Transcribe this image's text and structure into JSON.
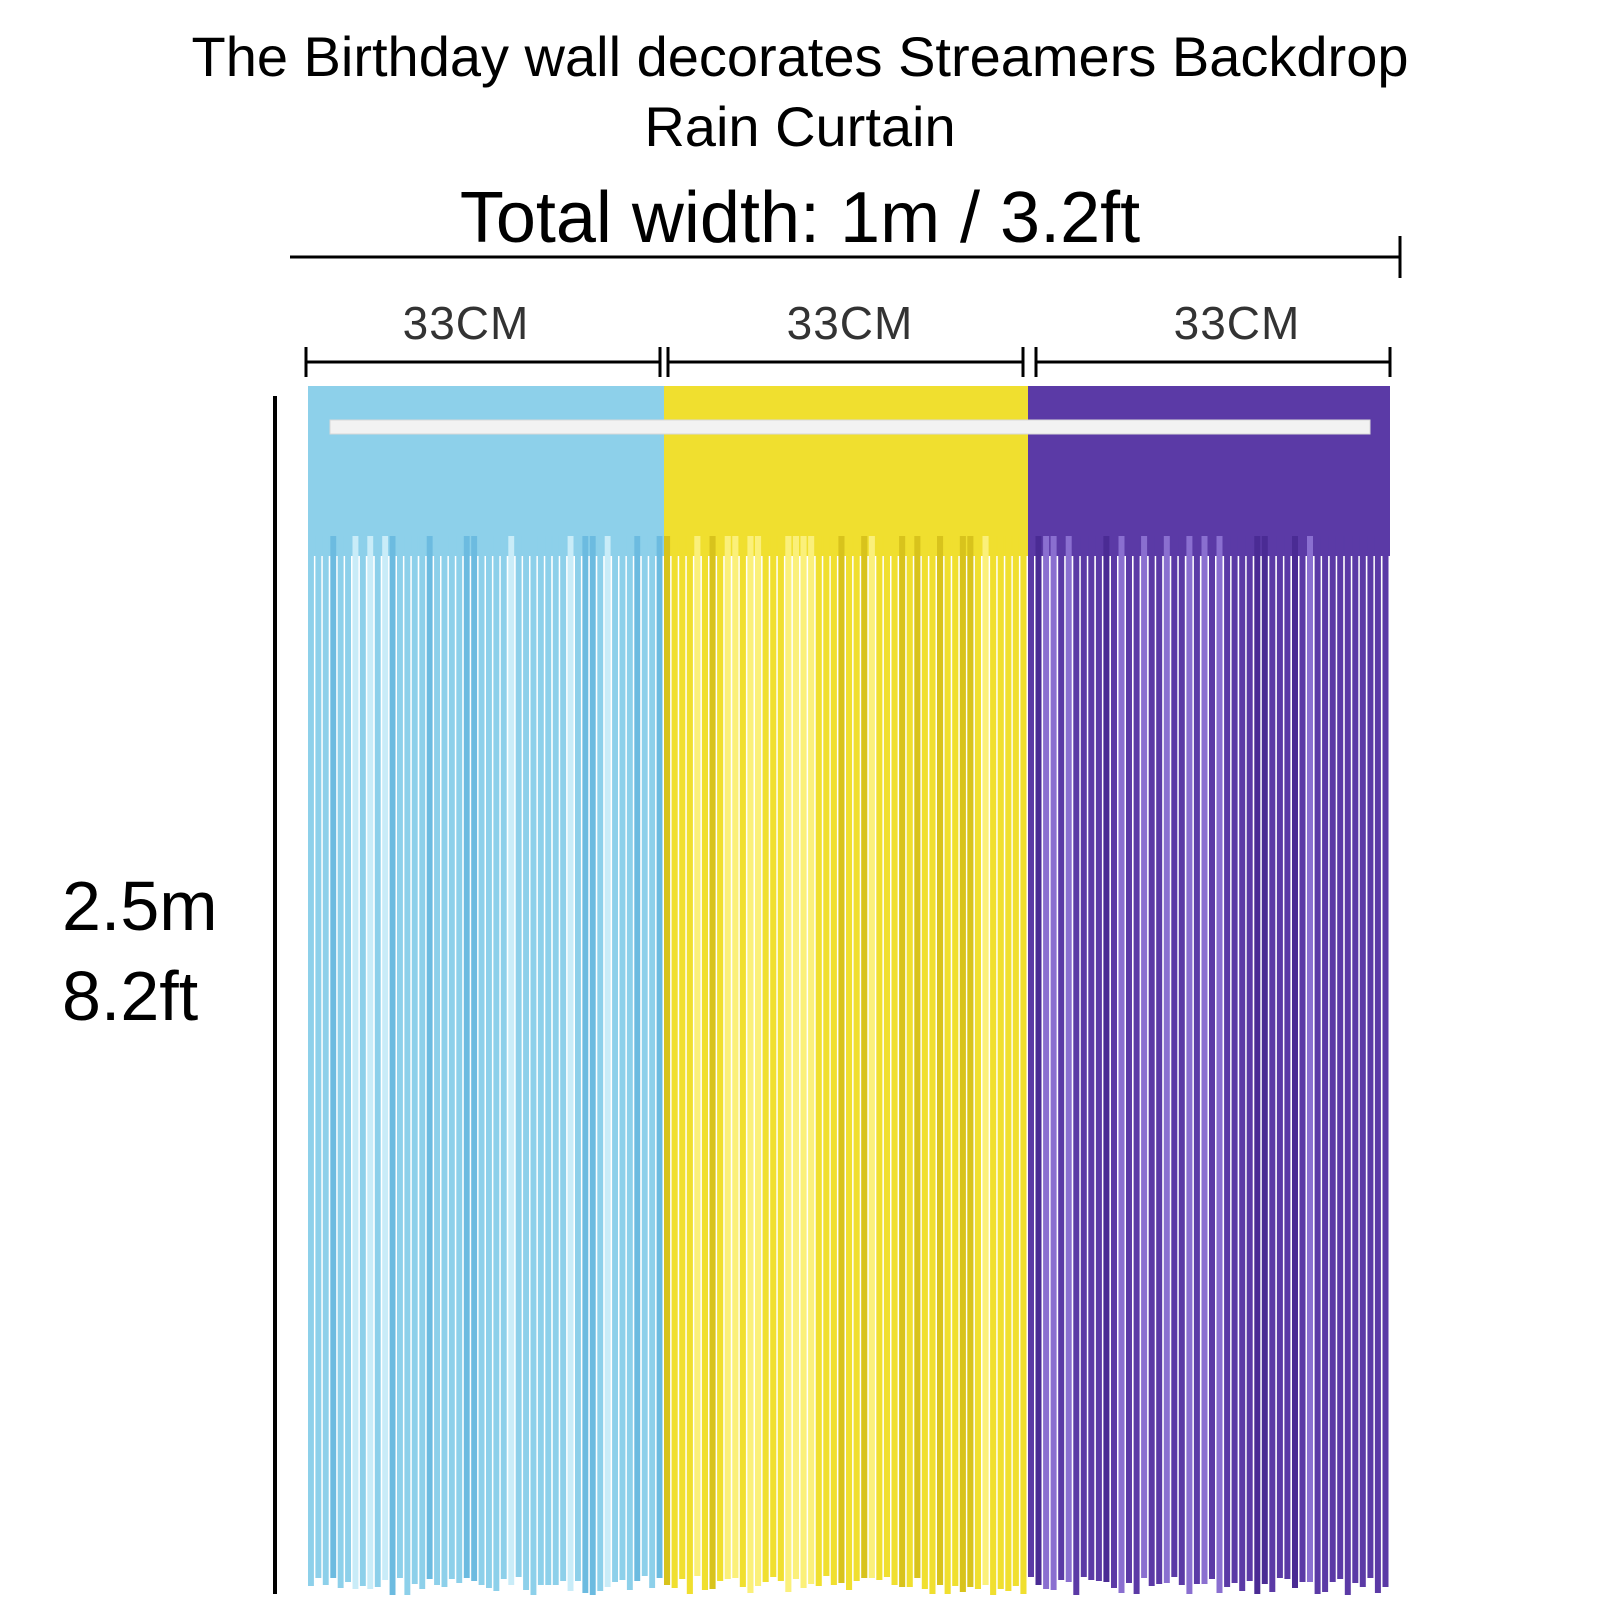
{
  "title_line1": "The Birthday wall decorates Streamers Backdrop",
  "title_line2": "Rain Curtain",
  "total_width_label": "Total width: 1m / 3.2ft",
  "segment_labels": [
    "33CM",
    "33CM",
    "33CM"
  ],
  "height_label_m": "2.5m",
  "height_label_ft": "8.2ft",
  "curtain_colors": {
    "blue": "#8dd0ea",
    "yellow": "#f0df2f",
    "purple": "#5b3aa6"
  }
}
